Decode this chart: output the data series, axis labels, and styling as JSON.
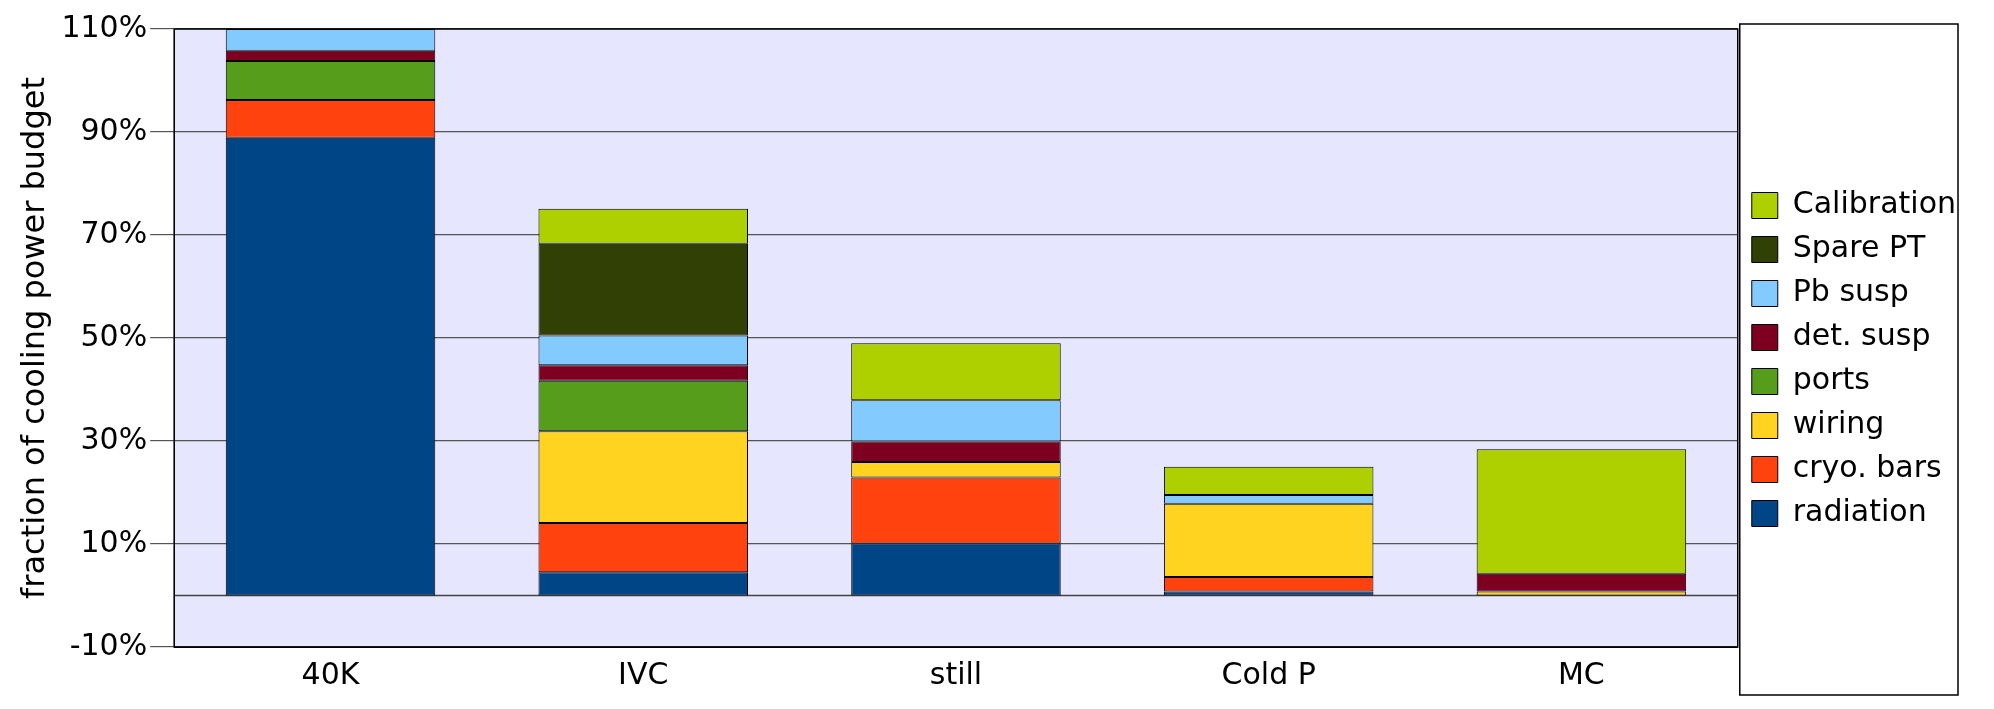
{
  "chart_data": {
    "type": "bar",
    "stacked": true,
    "ylabel": "fraction of cooling power budget",
    "categories": [
      "40K",
      "IVC",
      "still",
      "Cold P",
      "MC"
    ],
    "series": [
      {
        "name": "radiation",
        "color": "#004586",
        "values": [
          88.9,
          4.5,
          10.1,
          0.8,
          null
        ]
      },
      {
        "name": "cryo. bars",
        "color": "#ff420e",
        "values": [
          7.3,
          9.6,
          12.8,
          2.8,
          null
        ]
      },
      {
        "name": "wiring",
        "color": "#ffd320",
        "values": [
          null,
          17.8,
          3.0,
          14.2,
          0.8
        ]
      },
      {
        "name": "ports",
        "color": "#579d1c",
        "values": [
          7.6,
          9.8,
          null,
          null,
          null
        ]
      },
      {
        "name": "det. susp",
        "color": "#7e0021",
        "values": [
          2.0,
          3.0,
          4.0,
          null,
          3.4
        ]
      },
      {
        "name": "Pb susp",
        "color": "#83caff",
        "values": [
          4.2,
          5.8,
          8.0,
          1.7,
          null
        ]
      },
      {
        "name": "Spare PT",
        "color": "#314004",
        "values": [
          null,
          17.8,
          null,
          null,
          null
        ]
      },
      {
        "name": "Calibration",
        "color": "#aecf00",
        "values": [
          null,
          6.8,
          11.1,
          5.5,
          24.2
        ]
      }
    ],
    "ylim": [
      -10,
      110
    ],
    "yticks": [
      {
        "value": -10,
        "label": "-10%"
      },
      {
        "value": 10,
        "label": "10%"
      },
      {
        "value": 30,
        "label": "30%"
      },
      {
        "value": 50,
        "label": "50%"
      },
      {
        "value": 70,
        "label": "70%"
      },
      {
        "value": 90,
        "label": "90%"
      },
      {
        "value": 110,
        "label": "110%"
      }
    ],
    "ref_lines": [
      {
        "axis": "y",
        "value": 0,
        "label": null
      }
    ],
    "grid": "y",
    "legend": "right"
  }
}
